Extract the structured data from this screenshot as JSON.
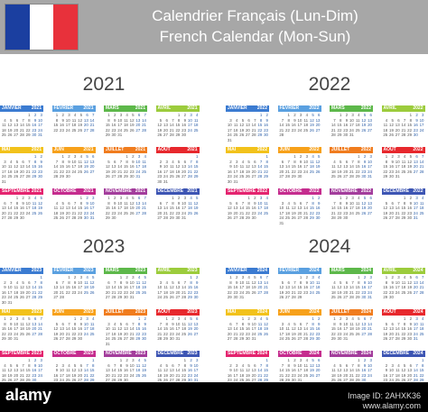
{
  "header": {
    "title_fr": "Calendrier Français (Lun-Dim)",
    "title_en": "French Calendar (Mon-Sun)",
    "flag_colors": [
      "#1b3fa0",
      "#ffffff",
      "#e8313b"
    ]
  },
  "years": [
    "2021",
    "2022",
    "2023",
    "2024"
  ],
  "month_names": [
    "JANVIER",
    "FÉVRIER",
    "MARS",
    "AVRIL",
    "MAI",
    "JUIN",
    "JUILLET",
    "AOUT",
    "SEPTEMBRE",
    "OCTOBRE",
    "NOVEMBRE",
    "DECEMBRE"
  ],
  "month_colors": [
    "#3b7bd1",
    "#5aa0e0",
    "#5db84a",
    "#9ccc3c",
    "#f2c21b",
    "#f7a11a",
    "#f07c1e",
    "#e7282d",
    "#e4246f",
    "#c52c8e",
    "#a33d9c",
    "#3d55b3"
  ],
  "footer": {
    "brand": "alamy",
    "image_id": "Image ID: 2AHXK36",
    "site": "www.alamy.com"
  }
}
